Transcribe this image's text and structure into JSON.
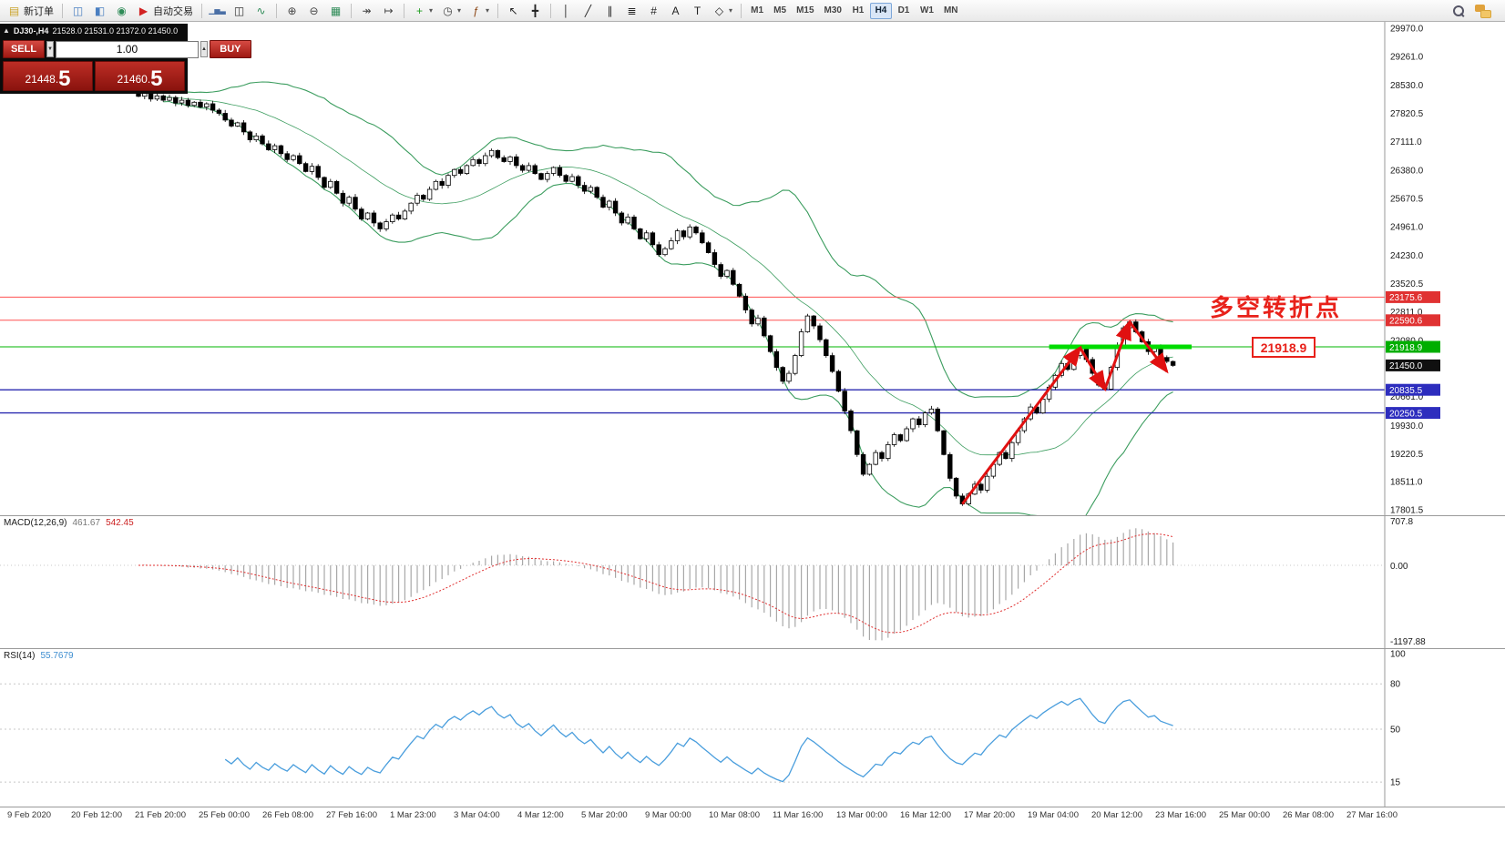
{
  "toolbar": {
    "groups": [
      {
        "items": [
          {
            "name": "new-order",
            "label": "新订单",
            "glyph": "▤",
            "color": "#c9a227"
          }
        ]
      },
      {
        "items": [
          {
            "name": "market-watch",
            "glyph": "◫",
            "color": "#4a7fc1"
          },
          {
            "name": "data-window",
            "glyph": "◧",
            "color": "#4a7fc1"
          },
          {
            "name": "navigator",
            "glyph": "◉",
            "color": "#2e8b57"
          },
          {
            "name": "auto-trading",
            "label": "自动交易",
            "glyph": "▶",
            "color": "#d22222"
          }
        ]
      },
      {
        "items": [
          {
            "name": "bar-chart-mode",
            "glyph": "▁▅▃",
            "color": "#4a6fa5"
          },
          {
            "name": "candlestick-mode",
            "glyph": "◫",
            "color": "#333333"
          },
          {
            "name": "line-chart-mode",
            "glyph": "∿",
            "color": "#2e8b57"
          }
        ]
      },
      {
        "items": [
          {
            "name": "zoom-in",
            "glyph": "⊕",
            "color": "#444444"
          },
          {
            "name": "zoom-out",
            "glyph": "⊖",
            "color": "#444444"
          },
          {
            "name": "tile-windows",
            "glyph": "▦",
            "color": "#2e8b57"
          }
        ]
      },
      {
        "items": [
          {
            "name": "auto-scroll",
            "glyph": "↠",
            "color": "#444444"
          },
          {
            "name": "chart-shift",
            "glyph": "↦",
            "color": "#444444"
          }
        ]
      },
      {
        "items": [
          {
            "name": "new-chart",
            "glyph": "+",
            "color": "#1e9e1e",
            "caret": true
          },
          {
            "name": "chart-period",
            "glyph": "◷",
            "color": "#444444",
            "caret": true
          },
          {
            "name": "indicators-list",
            "glyph": "ƒ",
            "color": "#8b4513",
            "caret": true
          }
        ]
      },
      {
        "items": [
          {
            "name": "cursor",
            "glyph": "↖",
            "color": "#222222"
          },
          {
            "name": "crosshair",
            "glyph": "╋",
            "color": "#222222"
          }
        ]
      },
      {
        "items": [
          {
            "name": "vertical-line-tool",
            "glyph": "│",
            "color": "#222222"
          },
          {
            "name": "trendline-tool",
            "glyph": "╱",
            "color": "#222222"
          },
          {
            "name": "channel-tool",
            "glyph": "∥",
            "color": "#222222"
          },
          {
            "name": "fibonacci-tool",
            "glyph": "≣",
            "color": "#222222"
          },
          {
            "name": "grid-tool",
            "glyph": "#",
            "color": "#222222"
          },
          {
            "name": "text-tool",
            "glyph": "A",
            "color": "#222222"
          },
          {
            "name": "text-label-tool",
            "glyph": "T",
            "color": "#222222"
          },
          {
            "name": "shapes-tool",
            "glyph": "◇",
            "color": "#222222",
            "caret": true
          }
        ]
      }
    ],
    "timeframes": [
      "M1",
      "M5",
      "M15",
      "M30",
      "H1",
      "H4",
      "D1",
      "W1",
      "MN"
    ],
    "active_timeframe": "H4"
  },
  "trade_panel": {
    "collapse_icon": "▲",
    "symbol": "DJ30-,H4",
    "ohlc": "21528.0 21531.0 21372.0 21450.0",
    "sell_label": "SELL",
    "buy_label": "BUY",
    "volume": "1.00",
    "spin_down": "▼",
    "spin_up": "▲",
    "sell_price_main": "21448.",
    "sell_price_big": "5",
    "buy_price_main": "21460.",
    "buy_price_big": "5"
  },
  "annotations": {
    "turning_point_text": "多空转折点",
    "level_label": "21918.9"
  },
  "indicator_labels": {
    "macd_name": "MACD(12,26,9)",
    "macd_main": "461.67",
    "macd_signal": "542.45",
    "rsi_name": "RSI(14)",
    "rsi_value": "55.7679"
  },
  "chart_data": {
    "type": "candlestick",
    "symbol": "DJ30-",
    "timeframe": "H4",
    "ohlc_display": {
      "open": "21528.0",
      "high": "21531.0",
      "low": "21372.0",
      "close": "21450.0"
    },
    "price_range": {
      "min": 17801.5,
      "max": 29970.0
    },
    "closes": [
      28250,
      28320,
      28180,
      28260,
      28150,
      28220,
      28080,
      28150,
      28020,
      28100,
      27980,
      28060,
      27900,
      27820,
      27650,
      27500,
      27580,
      27350,
      27150,
      27250,
      27050,
      26900,
      27000,
      26800,
      26650,
      26750,
      26550,
      26350,
      26480,
      26200,
      25950,
      26100,
      25800,
      25550,
      25700,
      25400,
      25150,
      25300,
      25050,
      24900,
      25080,
      25250,
      25150,
      25350,
      25550,
      25750,
      25650,
      25900,
      26100,
      26000,
      26250,
      26400,
      26300,
      26500,
      26650,
      26550,
      26750,
      26880,
      26700,
      26600,
      26720,
      26500,
      26380,
      26500,
      26300,
      26150,
      26300,
      26450,
      26250,
      26100,
      26220,
      26000,
      25850,
      25950,
      25700,
      25450,
      25600,
      25300,
      25050,
      25200,
      24900,
      24650,
      24800,
      24500,
      24250,
      24400,
      24600,
      24850,
      24700,
      24950,
      24800,
      24550,
      24300,
      24000,
      23700,
      23850,
      23500,
      23200,
      22850,
      22500,
      22650,
      22200,
      21800,
      21400,
      21050,
      21250,
      21700,
      22300,
      22700,
      22450,
      22100,
      21700,
      21300,
      20800,
      20300,
      19800,
      19200,
      18700,
      18950,
      19250,
      19100,
      19450,
      19700,
      19550,
      19850,
      20100,
      19950,
      20250,
      20350,
      19800,
      19200,
      18600,
      18150,
      17950,
      18200,
      18450,
      18300,
      18650,
      18950,
      19250,
      19100,
      19500,
      19800,
      20100,
      20400,
      20250,
      20600,
      20900,
      21200,
      21500,
      21350,
      21700,
      21900,
      21600,
      21250,
      20950,
      20850,
      21400,
      21950,
      22400,
      22550,
      22300,
      22050,
      21800,
      21900,
      21650,
      21550,
      21450
    ],
    "price_axis_ticks": [
      "29970.0",
      "29261.0",
      "28530.0",
      "27820.5",
      "27111.0",
      "26380.0",
      "25670.5",
      "24961.0",
      "24230.0",
      "23520.5",
      "22811.0",
      "22080.0",
      "20661.0",
      "19930.0",
      "19220.5",
      "18511.0",
      "17801.5"
    ],
    "levels": [
      {
        "price": 23175.6,
        "color": "#ff5050",
        "width": 1
      },
      {
        "price": 22590.6,
        "color": "#ff5050",
        "width": 1
      },
      {
        "price": 21918.9,
        "color": "#00b400",
        "width": 1
      },
      {
        "price": 20835.5,
        "color": "#2a2ab0",
        "width": 1.4
      },
      {
        "price": 20250.5,
        "color": "#2a2ab0",
        "width": 1.4
      }
    ],
    "price_tags": [
      {
        "text": "23175.6",
        "price": 23175.6,
        "bg": "#e03232"
      },
      {
        "text": "22590.6",
        "price": 22590.6,
        "bg": "#e03232"
      },
      {
        "text": "21918.9",
        "price": 21918.9,
        "bg": "#00ae00"
      },
      {
        "text": "21450.0",
        "price": 21450.0,
        "bg": "#101010"
      },
      {
        "text": "20835.5",
        "price": 20835.5,
        "bg": "#2d2dbe"
      },
      {
        "text": "20250.5",
        "price": 20250.5,
        "bg": "#2d2dbe"
      }
    ],
    "current_price": 21450.0,
    "support_segment": {
      "price": 21918.9,
      "from_index": 147,
      "to_index": 170
    },
    "trend_arrows": [
      [
        133,
        17950
      ],
      [
        152,
        21900
      ],
      [
        156,
        20850
      ],
      [
        160,
        22550
      ],
      [
        166,
        21300
      ]
    ],
    "indicators": {
      "bollinger": {
        "period": 20,
        "deviation": 2,
        "color": "#3c9d5f"
      },
      "macd": {
        "label": "MACD(12,26,9)",
        "main": "461.67",
        "signal": "542.45",
        "axis": [
          "707.8",
          "0.00",
          "-1197.88"
        ]
      },
      "rsi": {
        "label": "RSI(14)",
        "value": "55.7679",
        "levels": [
          "100",
          "80",
          "50",
          "15"
        ]
      }
    },
    "time_labels": [
      "9 Feb 2020",
      "20 Feb 12:00",
      "21 Feb 20:00",
      "25 Feb 00:00",
      "26 Feb 08:00",
      "27 Feb 16:00",
      "1 Mar 23:00",
      "3 Mar 04:00",
      "4 Mar 12:00",
      "5 Mar 20:00",
      "9 Mar 00:00",
      "10 Mar 08:00",
      "11 Mar 16:00",
      "13 Mar 00:00",
      "16 Mar 12:00",
      "17 Mar 20:00",
      "19 Mar 04:00",
      "20 Mar 12:00",
      "23 Mar 16:00",
      "25 Mar 00:00",
      "26 Mar 08:00",
      "27 Mar 16:00"
    ]
  }
}
